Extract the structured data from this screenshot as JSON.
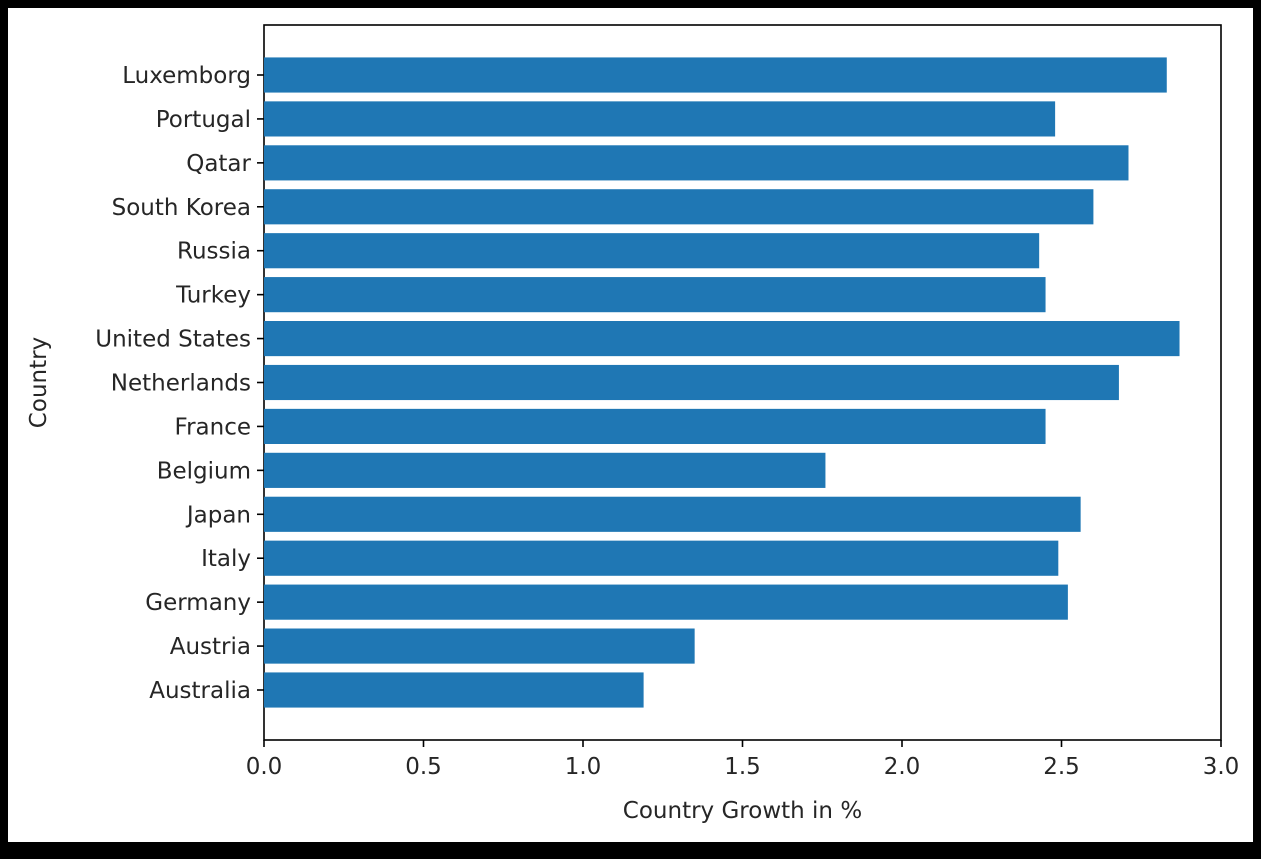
{
  "chart_data": {
    "type": "bar",
    "orientation": "horizontal",
    "title": "",
    "xlabel": "Country Growth in %",
    "ylabel": "Country",
    "xlim": [
      0,
      3.0
    ],
    "xticks": [
      "0.0",
      "0.5",
      "1.0",
      "1.5",
      "2.0",
      "2.5",
      "3.0"
    ],
    "categories": [
      "Australia",
      "Austria",
      "Germany",
      "Italy",
      "Japan",
      "Belgium",
      "France",
      "Netherlands",
      "United States",
      "Turkey",
      "Russia",
      "South Korea",
      "Qatar",
      "Portugal",
      "Luxemborg"
    ],
    "values": [
      1.19,
      1.35,
      2.52,
      2.49,
      2.56,
      1.76,
      2.45,
      2.68,
      2.87,
      2.45,
      2.43,
      2.6,
      2.71,
      2.48,
      2.83
    ],
    "bar_color": "#1f77b4",
    "grid": false,
    "legend": "none"
  }
}
